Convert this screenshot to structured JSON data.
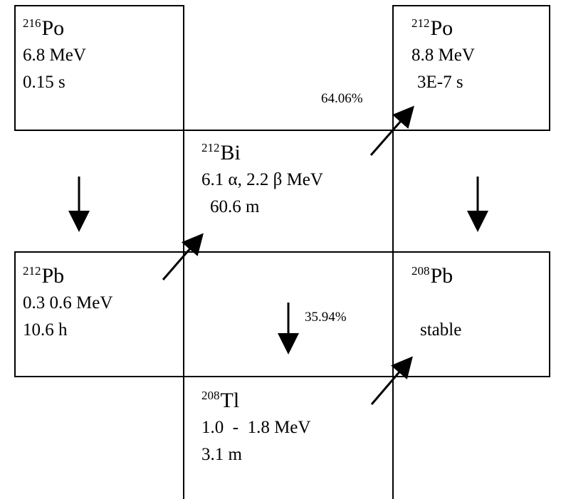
{
  "nuclides": {
    "po216": {
      "mass": "216",
      "symbol": "Po",
      "energy": "6.8 MeV",
      "halflife": "0.15 s"
    },
    "po212": {
      "mass": "212",
      "symbol": "Po",
      "energy": "8.8 MeV",
      "halflife": "3E-7 s"
    },
    "bi212": {
      "mass": "212",
      "symbol": "Bi",
      "energy": "6.1 α, 2.2 β MeV",
      "halflife": "60.6 m"
    },
    "pb212": {
      "mass": "212",
      "symbol": "Pb",
      "energy": "0.3 0.6 MeV",
      "halflife": "10.6 h"
    },
    "pb208": {
      "mass": "208",
      "symbol": "Pb",
      "status": "stable"
    },
    "tl208": {
      "mass": "208",
      "symbol": "Tl",
      "energy": "1.0  -  1.8 MeV",
      "halflife": "3.1 m"
    }
  },
  "branches": {
    "bi_to_po": "64.06%",
    "bi_to_tl": "35.94%"
  }
}
